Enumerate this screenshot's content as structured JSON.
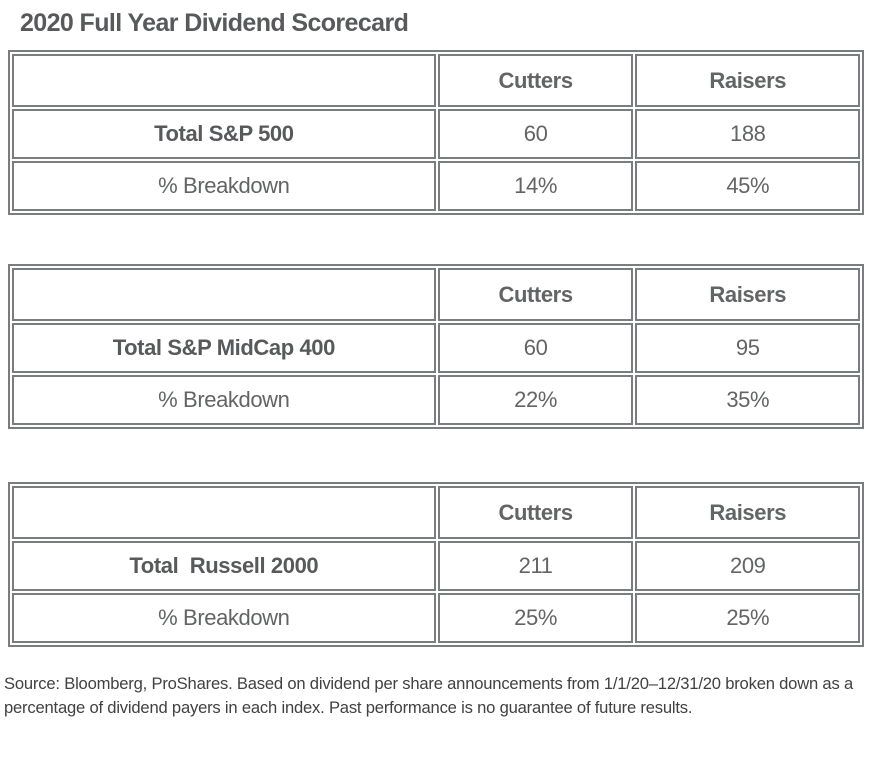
{
  "page": {
    "title": "2020 Full Year Dividend Scorecard"
  },
  "colors": {
    "text_dark": "#58595b",
    "text_value": "#636466",
    "table_border": "#7b7c7f",
    "footnote_text": "#414042",
    "background": "#ffffff"
  },
  "tables": [
    {
      "id": "sp500",
      "headers": [
        "",
        "Cutters",
        "Raisers"
      ],
      "rows": [
        {
          "label": "Total S&P 500",
          "cutters": "60",
          "raisers": "188"
        },
        {
          "label": "% Breakdown",
          "cutters": "14%",
          "raisers": "45%"
        }
      ]
    },
    {
      "id": "sp-midcap-400",
      "headers": [
        "",
        "Cutters",
        "Raisers"
      ],
      "rows": [
        {
          "label": "Total S&P MidCap 400",
          "cutters": "60",
          "raisers": "95"
        },
        {
          "label": "% Breakdown",
          "cutters": "22%",
          "raisers": "35%"
        }
      ]
    },
    {
      "id": "russell-2000",
      "headers": [
        "",
        "Cutters",
        "Raisers"
      ],
      "rows": [
        {
          "label": "Total  Russell 2000",
          "cutters": "211",
          "raisers": "209"
        },
        {
          "label": "% Breakdown",
          "cutters": "25%",
          "raisers": "25%"
        }
      ]
    }
  ],
  "footer": {
    "source_text": "Source: Bloomberg, ProShares. Based on dividend per share announcements from 1/1/20–12/31/20 broken down as a percentage of dividend payers in each index. Past performance is no guarantee of future results."
  }
}
